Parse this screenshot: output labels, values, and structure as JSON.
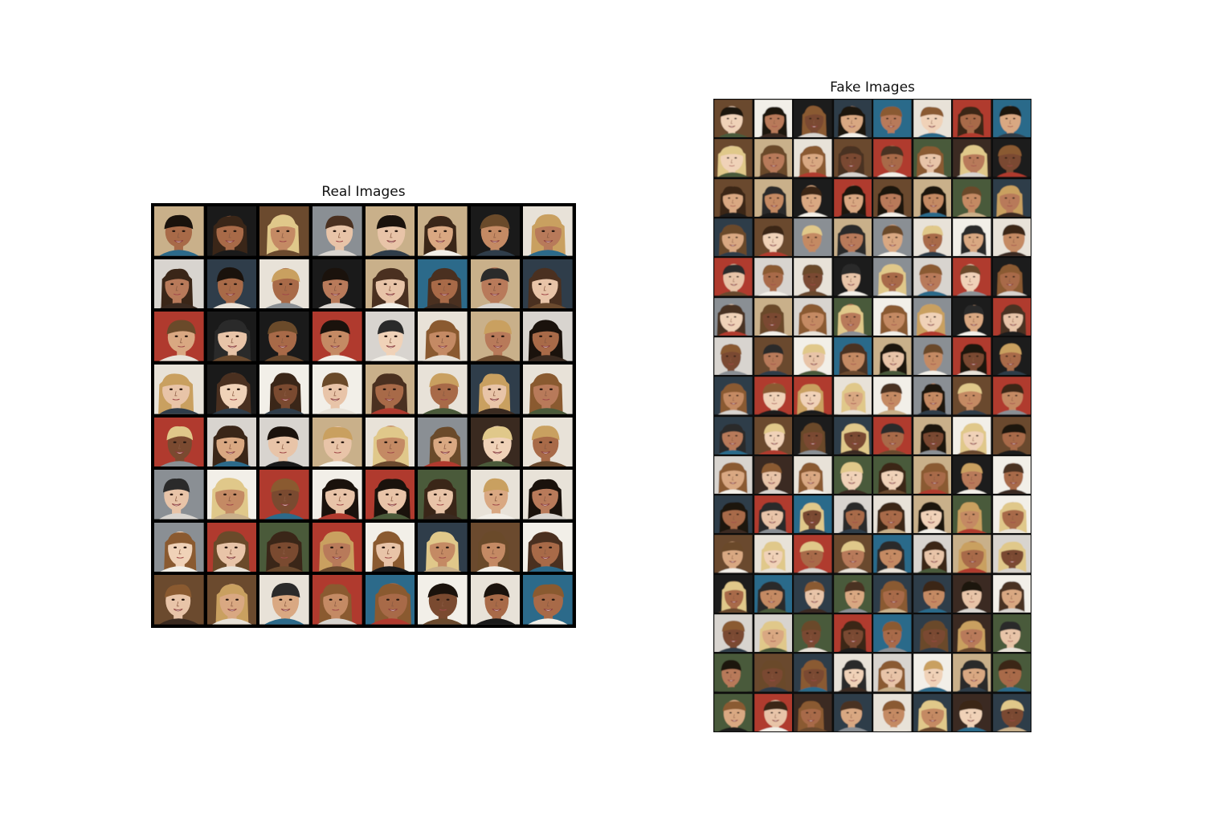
{
  "panels": {
    "real": {
      "title": "Real Images",
      "rows": 8,
      "cols": 8
    },
    "fake": {
      "title": "Fake Images",
      "rows": 16,
      "cols": 8
    }
  },
  "palette": {
    "backgrounds": [
      "#1a1a1a",
      "#e8e2d8",
      "#6b4a2e",
      "#2f3d4a",
      "#8a8f94",
      "#c9b08a",
      "#3a2a20",
      "#d8d4cf",
      "#4a5a3a",
      "#b03a2e",
      "#2c6a8a",
      "#f2efe8"
    ],
    "skins": [
      "#e8c4a8",
      "#d9a882",
      "#c48a64",
      "#a86a48",
      "#7a4a30",
      "#f0d2b8",
      "#b87a5a"
    ],
    "hairs": [
      "#1a120c",
      "#3a2618",
      "#6a4a2a",
      "#c9a060",
      "#e0c88a",
      "#2a2a2a",
      "#8a5a30",
      "#4a3020"
    ]
  }
}
